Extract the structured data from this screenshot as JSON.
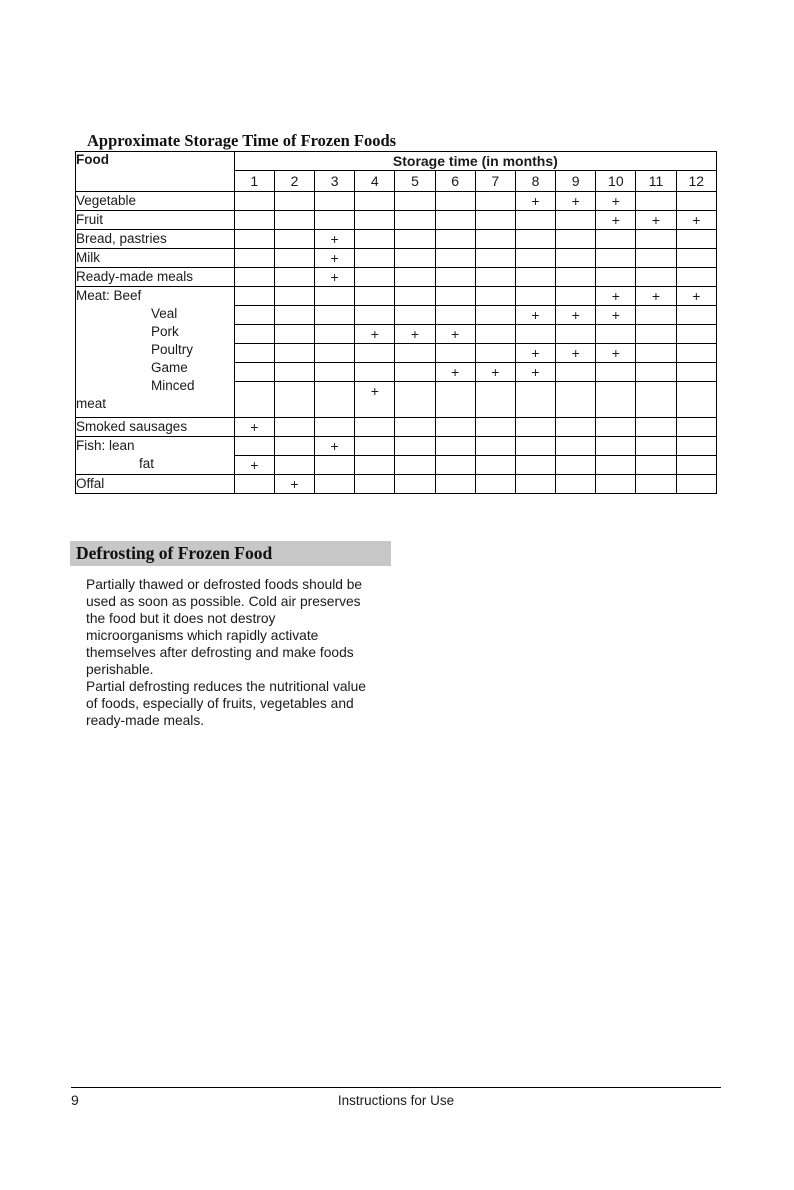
{
  "title": "Approximate Storage Time of Frozen Foods",
  "storage_table": {
    "food_header": "Food",
    "storage_header": "Storage time (in months)",
    "months": [
      "1",
      "2",
      "3",
      "4",
      "5",
      "6",
      "7",
      "8",
      "9",
      "10",
      "11",
      "12"
    ],
    "mark_symbol": "+",
    "groups": [
      {
        "labels": [
          {
            "text": "Vegetable",
            "indent": 0
          }
        ],
        "rows": [
          {
            "marks": [
              8,
              9,
              10
            ]
          }
        ]
      },
      {
        "labels": [
          {
            "text": "Fruit",
            "indent": 0
          }
        ],
        "rows": [
          {
            "marks": [
              10,
              11,
              12
            ]
          }
        ]
      },
      {
        "labels": [
          {
            "text": "Bread, pastries",
            "indent": 0
          }
        ],
        "rows": [
          {
            "marks": [
              3
            ]
          }
        ]
      },
      {
        "labels": [
          {
            "text": "Milk",
            "indent": 0
          }
        ],
        "rows": [
          {
            "marks": [
              3
            ]
          }
        ]
      },
      {
        "labels": [
          {
            "text": "Ready-made meals",
            "indent": 0
          }
        ],
        "rows": [
          {
            "marks": [
              3
            ]
          }
        ]
      },
      {
        "labels": [
          {
            "text": "Meat: Beef",
            "indent": 0
          },
          {
            "text": "Veal",
            "indent": 1
          },
          {
            "text": "Pork",
            "indent": 1
          },
          {
            "text": "Poultry",
            "indent": 1
          },
          {
            "text": "Game",
            "indent": 1
          },
          {
            "text": "Minced",
            "indent": 1
          },
          {
            "text": "meat",
            "indent": 0
          }
        ],
        "rows": [
          {
            "marks": [
              10,
              11,
              12
            ]
          },
          {
            "marks": [
              8,
              9,
              10
            ]
          },
          {
            "marks": [
              4,
              5,
              6
            ]
          },
          {
            "marks": [
              8,
              9,
              10
            ]
          },
          {
            "marks": [
              6,
              7,
              8
            ]
          },
          {
            "marks": [
              4
            ],
            "tall": true
          }
        ]
      },
      {
        "labels": [
          {
            "text": "Smoked sausages",
            "indent": 0
          }
        ],
        "rows": [
          {
            "marks": [
              1
            ]
          }
        ]
      },
      {
        "labels": [
          {
            "text": "Fish: lean",
            "indent": 0
          },
          {
            "text": "fat",
            "indent": 2
          }
        ],
        "rows": [
          {
            "marks": [
              3
            ]
          },
          {
            "marks": [
              1
            ]
          }
        ]
      },
      {
        "labels": [
          {
            "text": "Offal",
            "indent": 0
          }
        ],
        "rows": [
          {
            "marks": [
              2
            ]
          }
        ]
      }
    ]
  },
  "defrosting": {
    "heading": "Defrosting of Frozen Food",
    "paragraph_lines": [
      "Partially thawed or defrosted foods should be",
      "used as soon as possible. Cold air preserves",
      "the food but it does not destroy",
      "microorganisms which rapidly activate",
      "themselves after defrosting and make foods",
      "perishable.",
      "Partial defrosting reduces the nutritional value",
      "of foods, especially of fruits, vegetables and",
      "ready-made meals."
    ]
  },
  "footer": {
    "page_number": "9",
    "center_text": "Instructions for Use"
  },
  "colors": {
    "section_bar_bg": "#c7c7c7",
    "text": "#1a1a1a",
    "border": "#000000"
  }
}
